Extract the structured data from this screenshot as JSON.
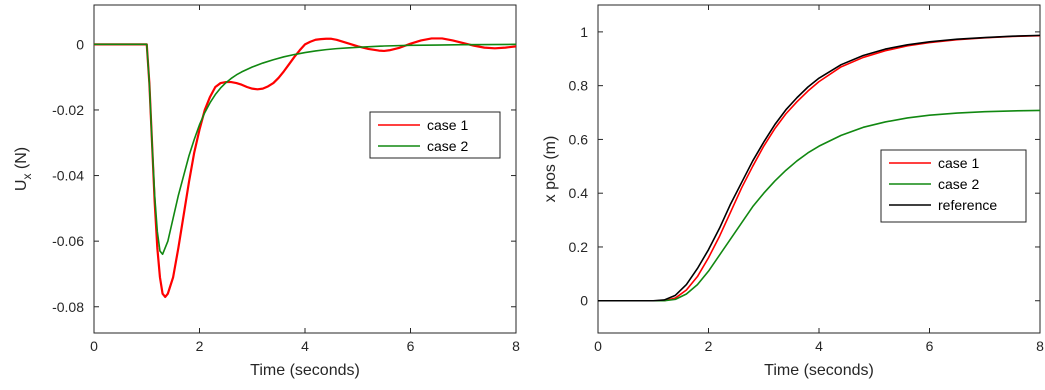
{
  "chart_data": [
    {
      "type": "line",
      "title": "",
      "xlabel": "Time (seconds)",
      "ylabel_main": "U",
      "ylabel_sub": "x",
      "ylabel_unit": " (N)",
      "xlim": [
        0,
        8
      ],
      "ylim": [
        -0.088,
        0.012
      ],
      "xticks": [
        0,
        2,
        4,
        6,
        8
      ],
      "yticks": [
        0,
        -0.02,
        -0.04,
        -0.06,
        -0.08
      ],
      "xtick_labels": [
        "0",
        "2",
        "4",
        "6",
        "8"
      ],
      "ytick_labels": [
        "0",
        "-0.02",
        "-0.04",
        "-0.06",
        "-0.08"
      ],
      "grid": false,
      "legend_position": "top-right",
      "series": [
        {
          "name": "case 1",
          "color": "#ff0000",
          "x": [
            0,
            0.5,
            1.0,
            1.05,
            1.1,
            1.15,
            1.2,
            1.25,
            1.3,
            1.35,
            1.4,
            1.5,
            1.6,
            1.7,
            1.8,
            1.9,
            2.0,
            2.1,
            2.2,
            2.3,
            2.4,
            2.5,
            2.6,
            2.7,
            2.8,
            2.9,
            3.0,
            3.1,
            3.2,
            3.3,
            3.4,
            3.5,
            3.6,
            3.7,
            3.8,
            3.9,
            4.0,
            4.1,
            4.2,
            4.3,
            4.4,
            4.5,
            4.6,
            4.7,
            4.8,
            4.9,
            5.0,
            5.2,
            5.4,
            5.5,
            5.6,
            5.8,
            6.0,
            6.2,
            6.4,
            6.6,
            6.8,
            7.0,
            7.2,
            7.4,
            7.6,
            7.8,
            8.0
          ],
          "y": [
            0,
            0,
            0,
            -0.012,
            -0.03,
            -0.048,
            -0.062,
            -0.071,
            -0.076,
            -0.077,
            -0.076,
            -0.071,
            -0.062,
            -0.052,
            -0.042,
            -0.033,
            -0.026,
            -0.02,
            -0.016,
            -0.013,
            -0.0118,
            -0.0115,
            -0.0115,
            -0.0118,
            -0.0123,
            -0.013,
            -0.0135,
            -0.0137,
            -0.0135,
            -0.0128,
            -0.0118,
            -0.0102,
            -0.0082,
            -0.006,
            -0.0038,
            -0.0018,
            0,
            0.0008,
            0.0014,
            0.0016,
            0.0017,
            0.0017,
            0.0014,
            0.0009,
            0.0004,
            -0.0001,
            -0.0006,
            -0.0014,
            -0.0019,
            -0.002,
            -0.0018,
            -0.001,
            0.0002,
            0.0012,
            0.0018,
            0.0018,
            0.0012,
            0.0004,
            -0.0004,
            -0.001,
            -0.0012,
            -0.001,
            -0.0006
          ]
        },
        {
          "name": "case 2",
          "color": "#118811",
          "x": [
            0,
            0.5,
            1.0,
            1.05,
            1.1,
            1.15,
            1.2,
            1.25,
            1.3,
            1.4,
            1.5,
            1.6,
            1.7,
            1.8,
            1.9,
            2.0,
            2.1,
            2.2,
            2.3,
            2.4,
            2.5,
            2.6,
            2.7,
            2.8,
            3.0,
            3.2,
            3.4,
            3.6,
            3.8,
            4.0,
            4.2,
            4.4,
            4.6,
            4.8,
            5.0,
            5.5,
            6.0,
            6.5,
            7.0,
            7.5,
            8.0
          ],
          "y": [
            0,
            0,
            0,
            -0.012,
            -0.03,
            -0.046,
            -0.057,
            -0.063,
            -0.064,
            -0.06,
            -0.053,
            -0.046,
            -0.04,
            -0.034,
            -0.029,
            -0.0245,
            -0.0208,
            -0.0178,
            -0.0153,
            -0.0133,
            -0.0117,
            -0.0104,
            -0.0093,
            -0.0084,
            -0.0069,
            -0.0057,
            -0.0047,
            -0.0038,
            -0.0031,
            -0.0025,
            -0.002,
            -0.0016,
            -0.0013,
            -0.0011,
            -0.0009,
            -0.0005,
            -0.0003,
            -0.0002,
            -0.0001,
            -5e-05,
            0
          ]
        }
      ]
    },
    {
      "type": "line",
      "title": "",
      "xlabel": "Time (seconds)",
      "ylabel": "x pos (m)",
      "xlim": [
        0,
        8
      ],
      "ylim": [
        -0.12,
        1.1
      ],
      "xticks": [
        0,
        2,
        4,
        6,
        8
      ],
      "yticks": [
        0,
        0.2,
        0.4,
        0.6,
        0.8,
        1
      ],
      "xtick_labels": [
        "0",
        "2",
        "4",
        "6",
        "8"
      ],
      "ytick_labels": [
        "0",
        "0.2",
        "0.4",
        "0.6",
        "0.8",
        "1"
      ],
      "grid": false,
      "legend_position": "center-right",
      "series": [
        {
          "name": "case 1",
          "color": "#ff0000",
          "x": [
            0,
            1.0,
            1.2,
            1.4,
            1.6,
            1.8,
            2.0,
            2.2,
            2.4,
            2.6,
            2.8,
            3.0,
            3.2,
            3.4,
            3.6,
            3.8,
            4.0,
            4.4,
            4.8,
            5.2,
            5.6,
            6.0,
            6.5,
            7.0,
            7.5,
            8.0
          ],
          "y": [
            0,
            0,
            0,
            0.01,
            0.04,
            0.09,
            0.16,
            0.24,
            0.33,
            0.42,
            0.5,
            0.575,
            0.64,
            0.695,
            0.74,
            0.78,
            0.815,
            0.87,
            0.905,
            0.93,
            0.948,
            0.96,
            0.971,
            0.978,
            0.983,
            0.986
          ]
        },
        {
          "name": "case 2",
          "color": "#118811",
          "x": [
            0,
            1.0,
            1.2,
            1.4,
            1.6,
            1.8,
            2.0,
            2.2,
            2.4,
            2.6,
            2.8,
            3.0,
            3.2,
            3.4,
            3.6,
            3.8,
            4.0,
            4.4,
            4.8,
            5.2,
            5.6,
            6.0,
            6.5,
            7.0,
            7.5,
            8.0
          ],
          "y": [
            0,
            0,
            0,
            0.005,
            0.025,
            0.06,
            0.11,
            0.17,
            0.23,
            0.29,
            0.35,
            0.4,
            0.445,
            0.485,
            0.52,
            0.55,
            0.575,
            0.615,
            0.645,
            0.665,
            0.68,
            0.69,
            0.698,
            0.703,
            0.706,
            0.708
          ]
        },
        {
          "name": "reference",
          "color": "#000000",
          "x": [
            0,
            1.0,
            1.2,
            1.4,
            1.6,
            1.8,
            2.0,
            2.2,
            2.4,
            2.6,
            2.8,
            3.0,
            3.2,
            3.4,
            3.6,
            3.8,
            4.0,
            4.4,
            4.8,
            5.2,
            5.6,
            6.0,
            6.5,
            7.0,
            7.5,
            8.0
          ],
          "y": [
            0,
            0,
            0.003,
            0.02,
            0.06,
            0.12,
            0.19,
            0.27,
            0.36,
            0.44,
            0.52,
            0.59,
            0.655,
            0.71,
            0.755,
            0.795,
            0.828,
            0.878,
            0.912,
            0.936,
            0.952,
            0.963,
            0.973,
            0.979,
            0.984,
            0.987
          ]
        }
      ]
    }
  ]
}
